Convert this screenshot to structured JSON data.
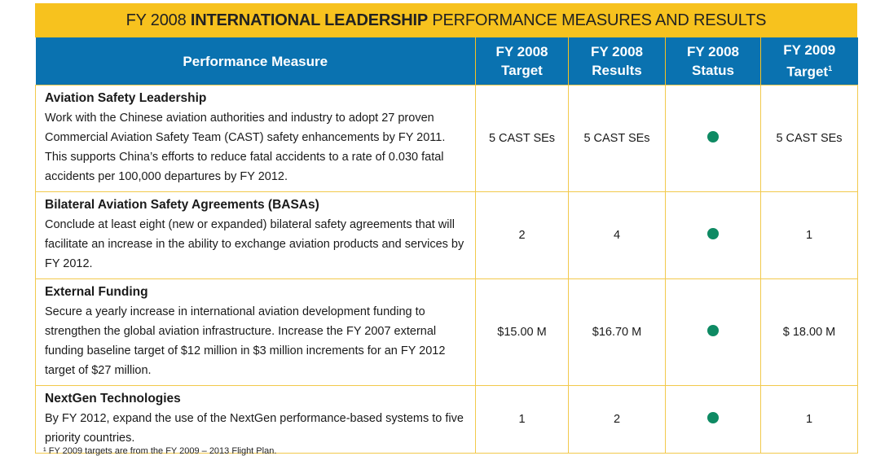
{
  "title": {
    "prefix": "FY 2008 ",
    "bold": "INTERNATIONAL LEADERSHIP",
    "suffix": " PERFORMANCE MEASURES AND RESULTS"
  },
  "columns": {
    "measure": "Performance Measure",
    "target_l1": "FY 2008",
    "target_l2": "Target",
    "results_l1": "FY 2008",
    "results_l2": "Results",
    "status_l1": "FY 2008",
    "status_l2": "Status",
    "target09_l1": "FY 2009",
    "target09_l2": "Target",
    "target09_sup": "1"
  },
  "rows": [
    {
      "title": "Aviation Safety Leadership",
      "description": "Work with the Chinese aviation authorities and industry to adopt 27 proven Commercial Aviation Safety Team (CAST) safety enhancements by FY 2011. This supports China’s efforts to reduce fatal accidents to a rate of 0.030 fatal accidents per 100,000 departures by FY 2012.",
      "target": "5 CAST SEs",
      "results": "5 CAST SEs",
      "status": "met",
      "target_2009": "5 CAST SEs"
    },
    {
      "title": "Bilateral Aviation Safety Agreements (BASAs)",
      "description": "Conclude at least eight (new or expanded) bilateral safety agreements that will facilitate an increase in the ability to exchange aviation products and services by FY 2012.",
      "target": "2",
      "results": "4",
      "status": "met",
      "target_2009": "1"
    },
    {
      "title": "External Funding",
      "description": "Secure a yearly increase in international aviation development funding to strengthen the global aviation infrastructure.  Increase the FY 2007 external funding baseline target of $12 million in $3 million increments for an FY 2012 target of $27 million.",
      "target": "$15.00 M",
      "results": "$16.70 M",
      "status": "met",
      "target_2009": "$ 18.00 M"
    },
    {
      "title": "NextGen Technologies",
      "description": "By FY 2012, expand the use of the NextGen performance-based systems to five priority countries.",
      "target": "1",
      "results": "2",
      "status": "met",
      "target_2009": "1"
    }
  ],
  "status_color": "#0e8a63",
  "footnote": "¹ FY 2009 targets are from the FY 2009 – 2013 Flight Plan."
}
